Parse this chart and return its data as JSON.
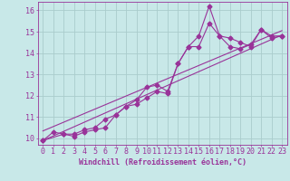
{
  "title": "",
  "xlabel": "Windchill (Refroidissement éolien,°C)",
  "ylabel": "",
  "xlim": [
    -0.5,
    23.5
  ],
  "ylim": [
    9.7,
    16.4
  ],
  "xticks": [
    0,
    1,
    2,
    3,
    4,
    5,
    6,
    7,
    8,
    9,
    10,
    11,
    12,
    13,
    14,
    15,
    16,
    17,
    18,
    19,
    20,
    21,
    22,
    23
  ],
  "yticks": [
    10,
    11,
    12,
    13,
    14,
    15,
    16
  ],
  "background_color": "#c8e8e8",
  "grid_color": "#aacccc",
  "line_color": "#993399",
  "line1_x": [
    0,
    1,
    2,
    3,
    4,
    5,
    6,
    7,
    8,
    9,
    10,
    11,
    12,
    13,
    14,
    15,
    16,
    17,
    18,
    19,
    20,
    21,
    22,
    23
  ],
  "line1_y": [
    9.9,
    10.3,
    10.2,
    10.1,
    10.3,
    10.4,
    10.5,
    11.1,
    11.5,
    11.6,
    11.9,
    12.2,
    12.1,
    13.5,
    14.3,
    14.8,
    16.2,
    14.8,
    14.7,
    14.5,
    14.3,
    15.1,
    14.8,
    14.8
  ],
  "line2_x": [
    0,
    2,
    3,
    4,
    5,
    6,
    7,
    8,
    9,
    10,
    11,
    12,
    13,
    14,
    15,
    16,
    17,
    18,
    19,
    20,
    21,
    22,
    23
  ],
  "line2_y": [
    9.9,
    10.2,
    10.2,
    10.4,
    10.5,
    10.9,
    11.1,
    11.5,
    11.8,
    12.4,
    12.5,
    12.2,
    13.5,
    14.3,
    14.3,
    15.4,
    14.8,
    14.3,
    14.2,
    14.4,
    15.1,
    14.7,
    14.8
  ],
  "reg_line1_x": [
    0,
    23
  ],
  "reg_line1_y": [
    9.9,
    14.85
  ],
  "reg_line2_x": [
    0,
    23
  ],
  "reg_line2_y": [
    10.35,
    15.05
  ],
  "font_size_xlabel": 6,
  "font_size_ticks": 6,
  "marker_size": 2.5,
  "line_width": 0.8
}
